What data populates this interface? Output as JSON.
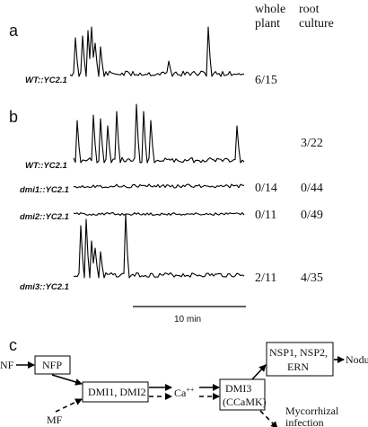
{
  "headers": {
    "whole_plant": [
      "whole",
      "plant"
    ],
    "root_culture": [
      "root",
      "culture"
    ]
  },
  "panels": {
    "a": "a",
    "b": "b",
    "c": "c"
  },
  "traces": [
    {
      "label": "WT::YC2.1",
      "whole_plant": "6/15",
      "root_culture": ""
    },
    {
      "label": "WT::YC2.1",
      "whole_plant": "",
      "root_culture": "3/22"
    },
    {
      "label": "dmi1::YC2.1",
      "whole_plant": "0/14",
      "root_culture": "0/44"
    },
    {
      "label": "dmi2::YC2.1",
      "whole_plant": "0/11",
      "root_culture": "0/49"
    },
    {
      "label": "dmi3::YC2.1",
      "whole_plant": "2/11",
      "root_culture": "4/35"
    }
  ],
  "scale_bar": "10 min",
  "diagram": {
    "nf": "NF",
    "nfp": "NFP",
    "mf": "MF",
    "dmi12": "DMI1, DMI2",
    "ca": "Ca",
    "ca_sup": "++",
    "dmi3": [
      "DMI3",
      "(CCaMK)"
    ],
    "nsp": [
      "NSP1, NSP2,",
      "ERN"
    ],
    "nodules": "Nodules",
    "myc": [
      "Mycorrhizal",
      "infection"
    ]
  }
}
